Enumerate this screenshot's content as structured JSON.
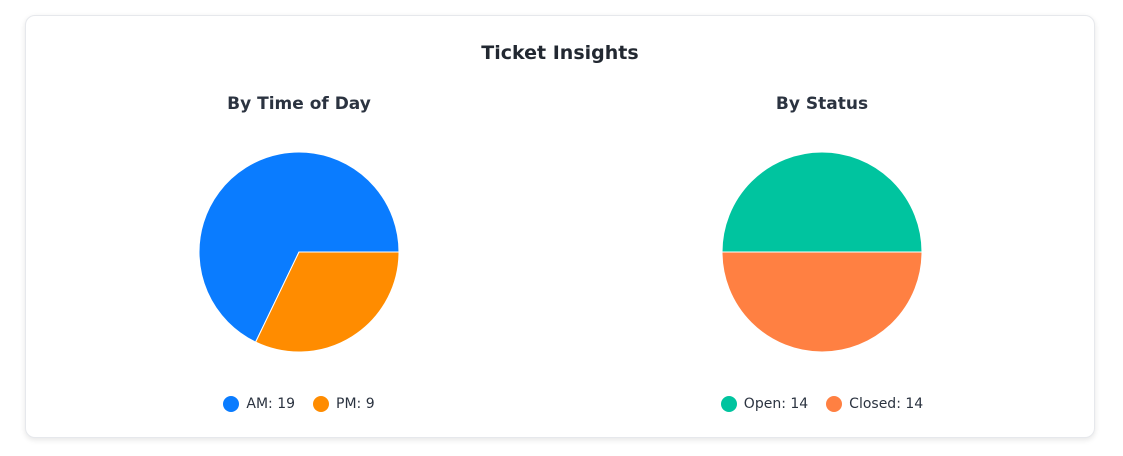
{
  "title": "Ticket Insights",
  "chart_data": [
    {
      "type": "pie",
      "title": "By Time of Day",
      "labels": [
        "AM",
        "PM"
      ],
      "values": [
        19,
        9
      ],
      "colors": [
        "#0a7cff",
        "#ff8c00"
      ],
      "legend": [
        "AM: 19",
        "PM: 9"
      ],
      "legend_position": "bottom"
    },
    {
      "type": "pie",
      "title": "By Status",
      "labels": [
        "Open",
        "Closed"
      ],
      "values": [
        14,
        14
      ],
      "colors": [
        "#00c49f",
        "#ff8042"
      ],
      "legend": [
        "Open: 14",
        "Closed: 14"
      ],
      "legend_position": "bottom"
    }
  ]
}
